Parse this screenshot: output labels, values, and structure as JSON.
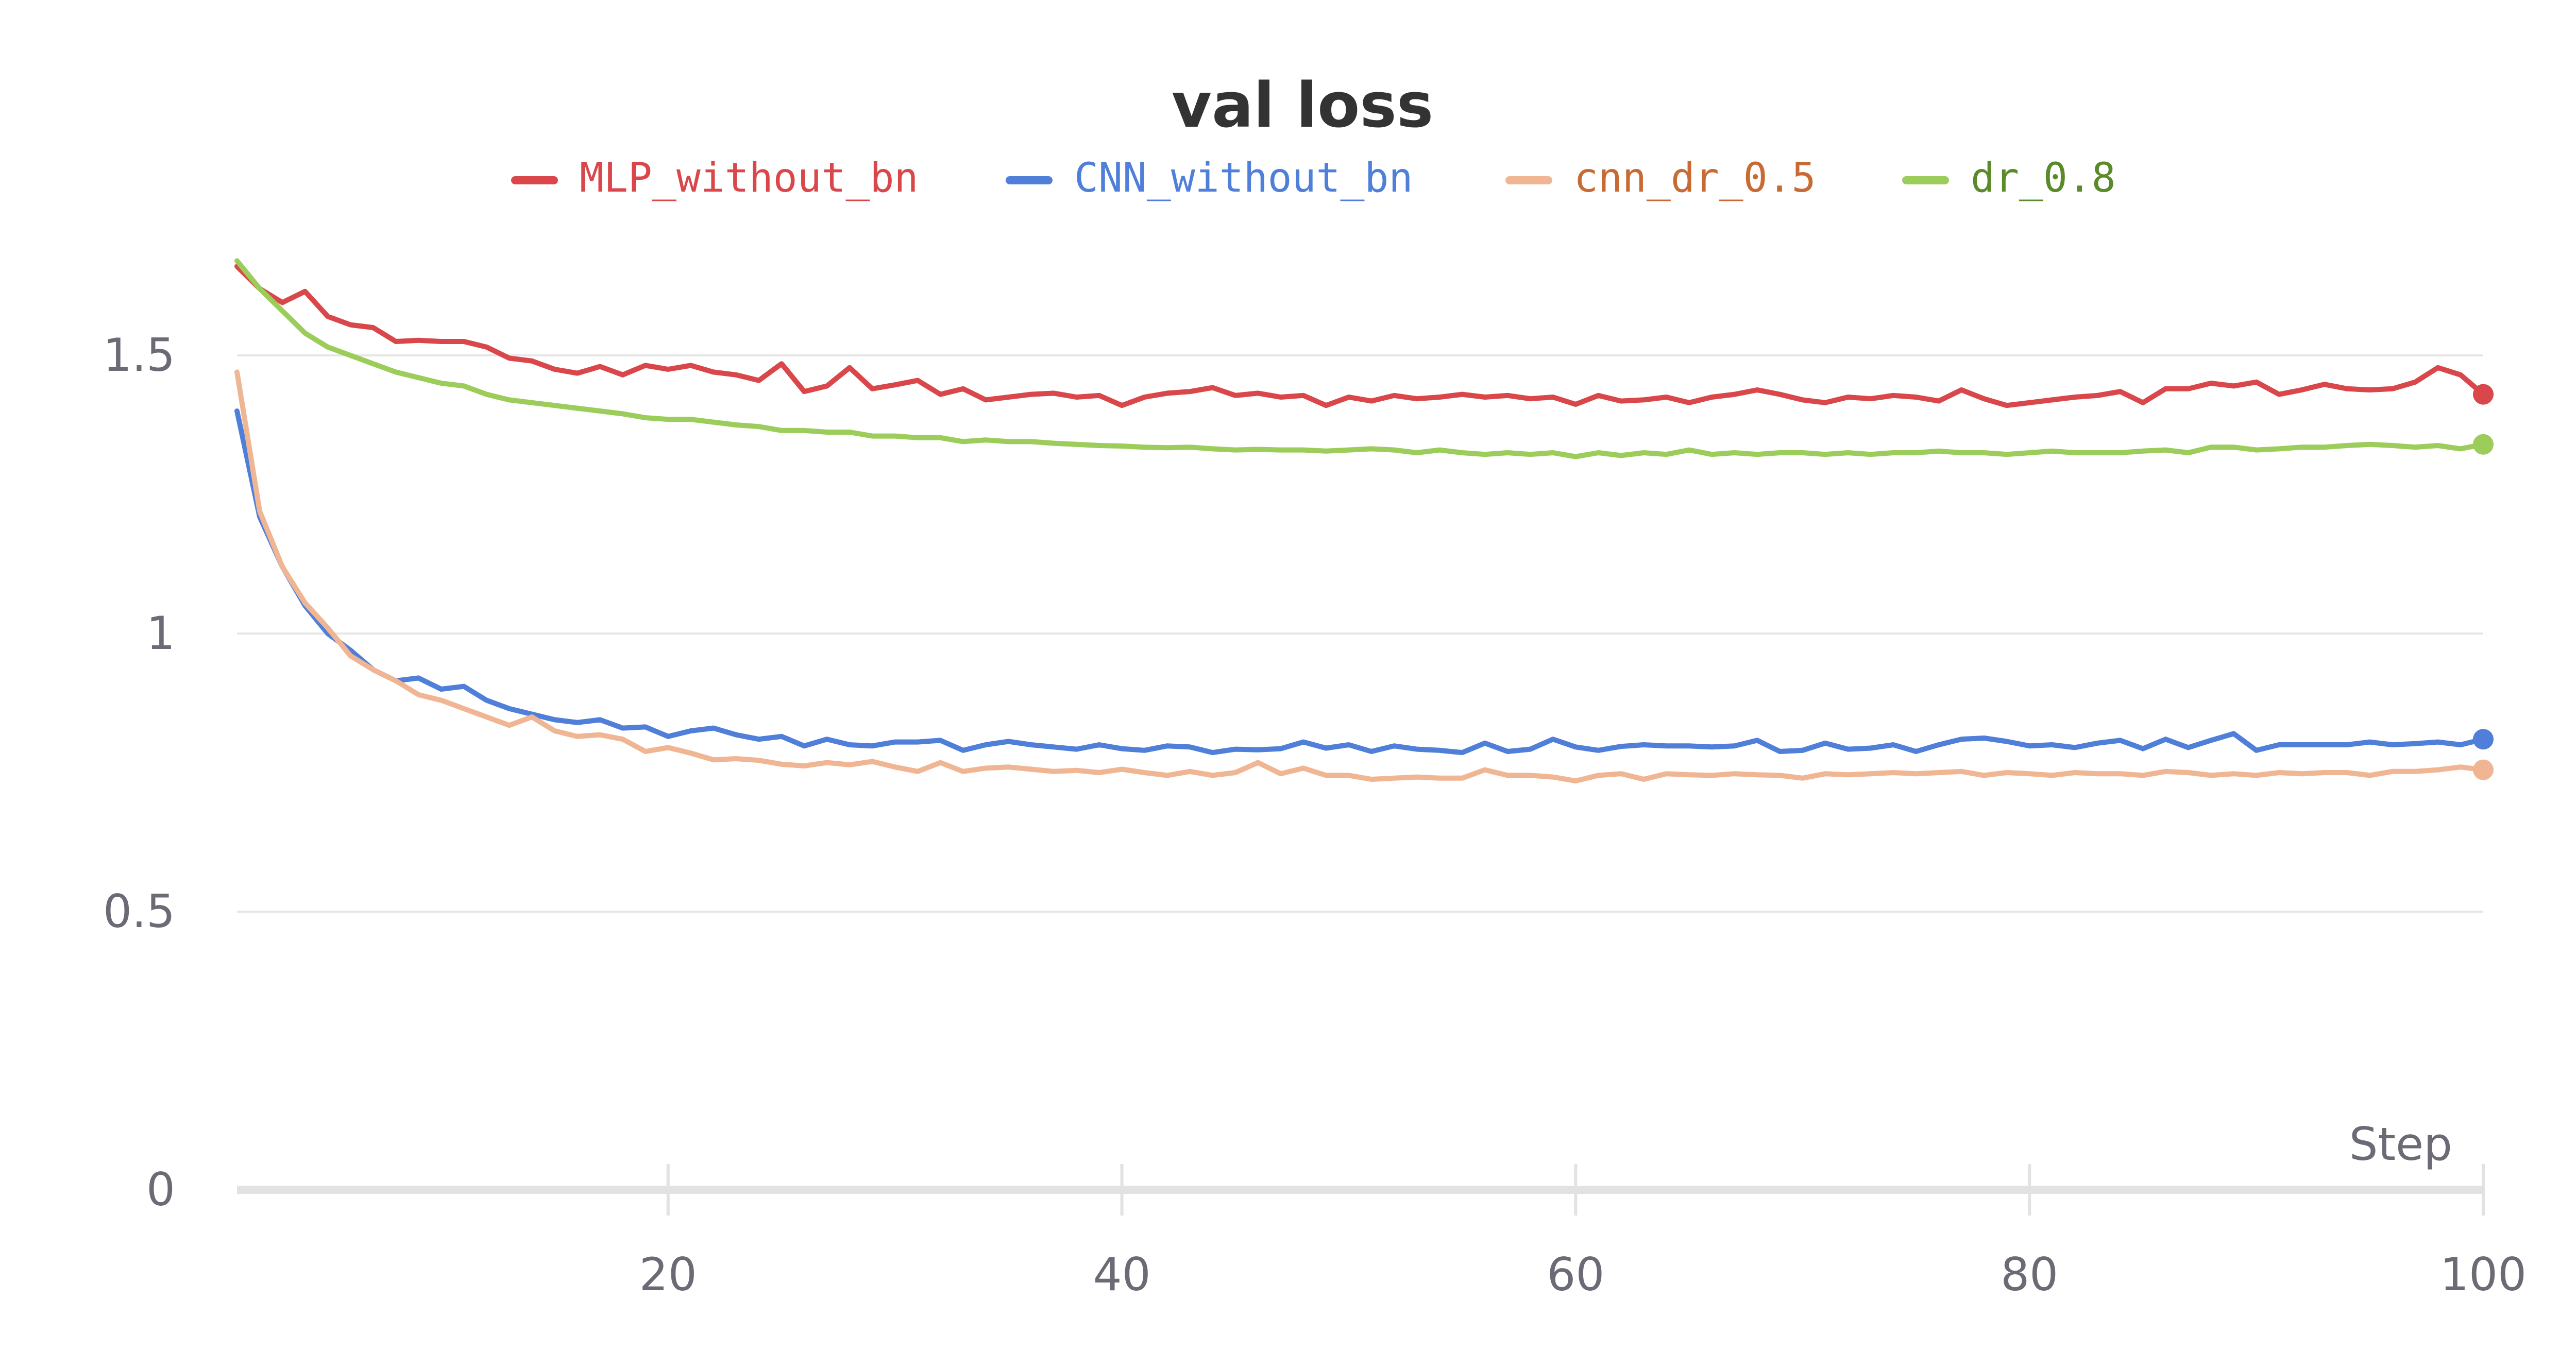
{
  "chart_data": {
    "type": "line",
    "title": "val loss",
    "xlabel": "Step",
    "ylabel": "",
    "xlim": [
      1,
      100
    ],
    "ylim": [
      0,
      1.75
    ],
    "x_ticks": [
      20,
      40,
      60,
      80,
      100
    ],
    "y_ticks": [
      0,
      0.5,
      1,
      1.5
    ],
    "x_tick_labels": [
      "20",
      "40",
      "60",
      "80",
      "100"
    ],
    "y_tick_labels": [
      "0",
      "0.5",
      "1",
      "1.5"
    ],
    "grid": "horizontal",
    "legend_position": "top-center",
    "series": [
      {
        "name": "MLP_without_bn",
        "color": "#d9474b",
        "x": [
          1,
          2,
          3,
          4,
          5,
          6,
          7,
          8,
          9,
          10,
          11,
          12,
          13,
          14,
          15,
          16,
          17,
          18,
          19,
          20,
          21,
          22,
          23,
          24,
          25,
          26,
          27,
          28,
          29,
          30,
          31,
          32,
          33,
          34,
          35,
          36,
          37,
          38,
          39,
          40,
          41,
          42,
          43,
          44,
          45,
          46,
          47,
          48,
          49,
          50,
          51,
          52,
          53,
          54,
          55,
          56,
          57,
          58,
          59,
          60,
          61,
          62,
          63,
          64,
          65,
          66,
          67,
          68,
          69,
          70,
          71,
          72,
          73,
          74,
          75,
          76,
          77,
          78,
          79,
          80,
          81,
          82,
          83,
          84,
          85,
          86,
          87,
          88,
          89,
          90,
          91,
          92,
          93,
          94,
          95,
          96,
          97,
          98,
          99,
          100
        ],
        "values": [
          1.66,
          1.62,
          1.595,
          1.615,
          1.57,
          1.555,
          1.55,
          1.525,
          1.527,
          1.525,
          1.525,
          1.515,
          1.495,
          1.49,
          1.475,
          1.468,
          1.48,
          1.465,
          1.482,
          1.475,
          1.482,
          1.47,
          1.465,
          1.455,
          1.485,
          1.435,
          1.445,
          1.478,
          1.44,
          1.447,
          1.455,
          1.43,
          1.44,
          1.42,
          1.425,
          1.43,
          1.432,
          1.425,
          1.428,
          1.41,
          1.425,
          1.432,
          1.435,
          1.442,
          1.428,
          1.432,
          1.425,
          1.428,
          1.41,
          1.425,
          1.418,
          1.428,
          1.422,
          1.425,
          1.43,
          1.425,
          1.428,
          1.422,
          1.425,
          1.412,
          1.428,
          1.418,
          1.42,
          1.425,
          1.415,
          1.425,
          1.43,
          1.438,
          1.43,
          1.42,
          1.415,
          1.425,
          1.422,
          1.428,
          1.425,
          1.418,
          1.438,
          1.422,
          1.41,
          1.415,
          1.42,
          1.425,
          1.428,
          1.435,
          1.415,
          1.44,
          1.44,
          1.45,
          1.445,
          1.452,
          1.43,
          1.438,
          1.448,
          1.44,
          1.438,
          1.44,
          1.452,
          1.478,
          1.465,
          1.43
        ]
      },
      {
        "name": "CNN_without_bn",
        "color": "#4f7fd9",
        "x": [
          1,
          2,
          3,
          4,
          5,
          6,
          7,
          8,
          9,
          10,
          11,
          12,
          13,
          14,
          15,
          16,
          17,
          18,
          19,
          20,
          21,
          22,
          23,
          24,
          25,
          26,
          27,
          28,
          29,
          30,
          31,
          32,
          33,
          34,
          35,
          36,
          37,
          38,
          39,
          40,
          41,
          42,
          43,
          44,
          45,
          46,
          47,
          48,
          49,
          50,
          51,
          52,
          53,
          54,
          55,
          56,
          57,
          58,
          59,
          60,
          61,
          62,
          63,
          64,
          65,
          66,
          67,
          68,
          69,
          70,
          71,
          72,
          73,
          74,
          75,
          76,
          77,
          78,
          79,
          80,
          81,
          82,
          83,
          84,
          85,
          86,
          87,
          88,
          89,
          90,
          91,
          92,
          93,
          94,
          95,
          96,
          97,
          98,
          99,
          100
        ],
        "values": [
          1.4,
          1.21,
          1.12,
          1.05,
          1.0,
          0.97,
          0.935,
          0.915,
          0.92,
          0.9,
          0.905,
          0.88,
          0.865,
          0.855,
          0.845,
          0.84,
          0.845,
          0.83,
          0.832,
          0.815,
          0.825,
          0.83,
          0.818,
          0.81,
          0.815,
          0.798,
          0.81,
          0.8,
          0.798,
          0.805,
          0.805,
          0.808,
          0.79,
          0.8,
          0.806,
          0.8,
          0.796,
          0.792,
          0.8,
          0.793,
          0.79,
          0.798,
          0.796,
          0.786,
          0.792,
          0.791,
          0.793,
          0.805,
          0.794,
          0.8,
          0.788,
          0.798,
          0.792,
          0.79,
          0.786,
          0.803,
          0.788,
          0.792,
          0.81,
          0.796,
          0.79,
          0.797,
          0.8,
          0.798,
          0.798,
          0.796,
          0.798,
          0.808,
          0.788,
          0.79,
          0.803,
          0.792,
          0.794,
          0.8,
          0.788,
          0.8,
          0.81,
          0.812,
          0.806,
          0.798,
          0.8,
          0.795,
          0.803,
          0.808,
          0.793,
          0.81,
          0.795,
          0.808,
          0.82,
          0.79,
          0.8,
          0.8,
          0.8,
          0.8,
          0.805,
          0.8,
          0.802,
          0.805,
          0.8,
          0.81
        ]
      },
      {
        "name": "cnn_dr_0.5",
        "color": "#f0b693",
        "text_color": "#c76a33",
        "x": [
          1,
          2,
          3,
          4,
          5,
          6,
          7,
          8,
          9,
          10,
          11,
          12,
          13,
          14,
          15,
          16,
          17,
          18,
          19,
          20,
          21,
          22,
          23,
          24,
          25,
          26,
          27,
          28,
          29,
          30,
          31,
          32,
          33,
          34,
          35,
          36,
          37,
          38,
          39,
          40,
          41,
          42,
          43,
          44,
          45,
          46,
          47,
          48,
          49,
          50,
          51,
          52,
          53,
          54,
          55,
          56,
          57,
          58,
          59,
          60,
          61,
          62,
          63,
          64,
          65,
          66,
          67,
          68,
          69,
          70,
          71,
          72,
          73,
          74,
          75,
          76,
          77,
          78,
          79,
          80,
          81,
          82,
          83,
          84,
          85,
          86,
          87,
          88,
          89,
          90,
          91,
          92,
          93,
          94,
          95,
          96,
          97,
          98,
          99,
          100
        ],
        "values": [
          1.47,
          1.22,
          1.12,
          1.055,
          1.01,
          0.96,
          0.935,
          0.915,
          0.89,
          0.88,
          0.865,
          0.85,
          0.835,
          0.85,
          0.825,
          0.815,
          0.818,
          0.81,
          0.788,
          0.795,
          0.785,
          0.773,
          0.775,
          0.772,
          0.765,
          0.762,
          0.768,
          0.764,
          0.77,
          0.76,
          0.752,
          0.768,
          0.752,
          0.758,
          0.76,
          0.756,
          0.752,
          0.754,
          0.75,
          0.756,
          0.75,
          0.745,
          0.752,
          0.745,
          0.75,
          0.768,
          0.748,
          0.758,
          0.745,
          0.745,
          0.738,
          0.74,
          0.742,
          0.74,
          0.74,
          0.755,
          0.745,
          0.745,
          0.742,
          0.735,
          0.745,
          0.748,
          0.738,
          0.748,
          0.746,
          0.745,
          0.748,
          0.746,
          0.745,
          0.74,
          0.748,
          0.746,
          0.748,
          0.75,
          0.748,
          0.75,
          0.752,
          0.745,
          0.75,
          0.748,
          0.745,
          0.75,
          0.748,
          0.748,
          0.745,
          0.752,
          0.75,
          0.745,
          0.748,
          0.745,
          0.75,
          0.748,
          0.75,
          0.75,
          0.745,
          0.752,
          0.752,
          0.755,
          0.76,
          0.755
        ]
      },
      {
        "name": "dr_0.8",
        "color": "#9ccc5a",
        "text_color": "#5a8a2a",
        "x": [
          1,
          2,
          3,
          4,
          5,
          6,
          7,
          8,
          9,
          10,
          11,
          12,
          13,
          14,
          15,
          16,
          17,
          18,
          19,
          20,
          21,
          22,
          23,
          24,
          25,
          26,
          27,
          28,
          29,
          30,
          31,
          32,
          33,
          34,
          35,
          36,
          37,
          38,
          39,
          40,
          41,
          42,
          43,
          44,
          45,
          46,
          47,
          48,
          49,
          50,
          51,
          52,
          53,
          54,
          55,
          56,
          57,
          58,
          59,
          60,
          61,
          62,
          63,
          64,
          65,
          66,
          67,
          68,
          69,
          70,
          71,
          72,
          73,
          74,
          75,
          76,
          77,
          78,
          79,
          80,
          81,
          82,
          83,
          84,
          85,
          86,
          87,
          88,
          89,
          90,
          91,
          92,
          93,
          94,
          95,
          96,
          97,
          98,
          99,
          100
        ],
        "values": [
          1.67,
          1.62,
          1.58,
          1.54,
          1.515,
          1.5,
          1.485,
          1.47,
          1.46,
          1.45,
          1.445,
          1.43,
          1.42,
          1.415,
          1.41,
          1.405,
          1.4,
          1.395,
          1.388,
          1.385,
          1.385,
          1.38,
          1.375,
          1.372,
          1.365,
          1.365,
          1.362,
          1.362,
          1.355,
          1.355,
          1.352,
          1.352,
          1.345,
          1.348,
          1.345,
          1.345,
          1.342,
          1.34,
          1.338,
          1.337,
          1.335,
          1.334,
          1.335,
          1.332,
          1.33,
          1.331,
          1.33,
          1.33,
          1.328,
          1.33,
          1.332,
          1.33,
          1.325,
          1.33,
          1.325,
          1.322,
          1.325,
          1.322,
          1.325,
          1.318,
          1.325,
          1.32,
          1.325,
          1.322,
          1.33,
          1.322,
          1.325,
          1.322,
          1.325,
          1.325,
          1.322,
          1.325,
          1.322,
          1.325,
          1.325,
          1.328,
          1.325,
          1.325,
          1.322,
          1.325,
          1.328,
          1.325,
          1.325,
          1.325,
          1.328,
          1.33,
          1.325,
          1.335,
          1.335,
          1.33,
          1.332,
          1.335,
          1.335,
          1.338,
          1.34,
          1.338,
          1.335,
          1.338,
          1.332,
          1.34
        ]
      }
    ]
  }
}
